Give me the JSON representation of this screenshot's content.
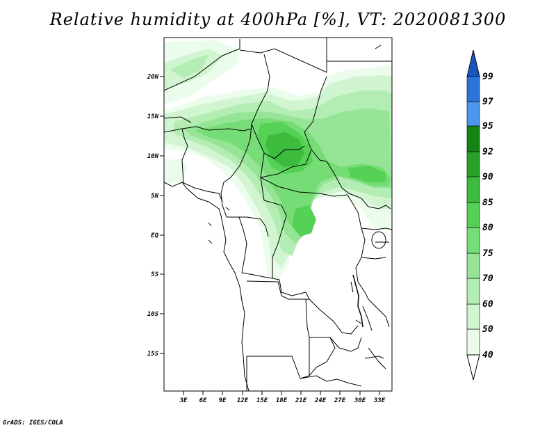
{
  "title": "Relative humidity at 400hPa [%], VT: 2020081300",
  "credit": "GrADS: IGES/COLA",
  "map": {
    "lon_range": [
      0,
      35
    ],
    "lat_range": [
      -20,
      25
    ],
    "lat_ticks": [
      "20N",
      "15N",
      "10N",
      "5N",
      "EQ",
      "5S",
      "10S",
      "15S"
    ],
    "lon_ticks": [
      "3E",
      "6E",
      "9E",
      "12E",
      "15E",
      "18E",
      "21E",
      "24E",
      "27E",
      "30E",
      "33E"
    ]
  },
  "colorbar": {
    "levels": [
      "40",
      "50",
      "60",
      "70",
      "75",
      "80",
      "85",
      "90",
      "92",
      "95",
      "97",
      "99"
    ],
    "colors": [
      "#ecfcec",
      "#d0f5d0",
      "#b3edb3",
      "#96e596",
      "#76dc76",
      "#55d255",
      "#3dbb3d",
      "#27a127",
      "#148514",
      "#4a96ec",
      "#2c74dc",
      "#1a55c0"
    ],
    "under_color": "#ffffff",
    "over_color": "#1a55c0"
  }
}
